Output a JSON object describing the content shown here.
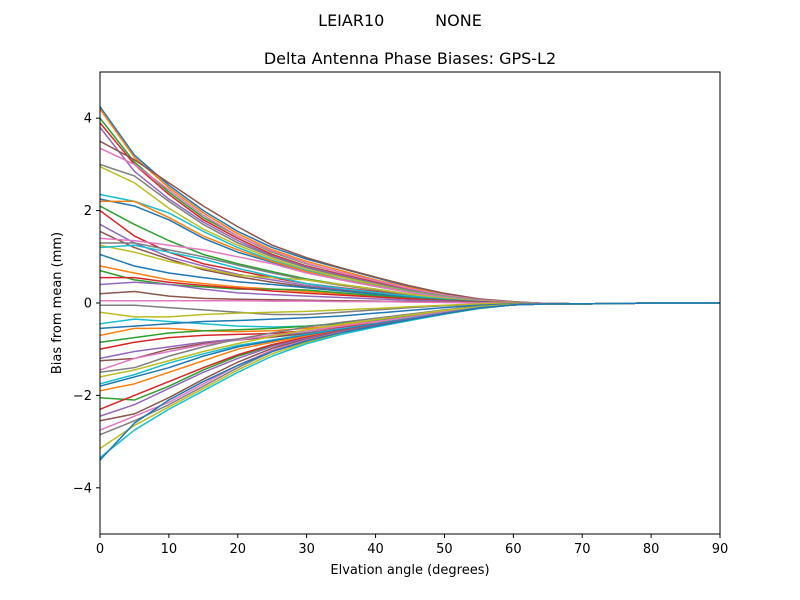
{
  "suptitle": "LEIAR10          NONE",
  "chart_data": {
    "type": "line",
    "title": "Delta Antenna Phase Biases: GPS-L2",
    "xlabel": "Elvation angle (degrees)",
    "ylabel": "Bias from mean (mm)",
    "xlim": [
      0,
      90
    ],
    "ylim": [
      -5,
      5
    ],
    "xticks": [
      0,
      10,
      20,
      30,
      40,
      50,
      60,
      70,
      80,
      90
    ],
    "yticks": [
      -4,
      -2,
      0,
      2,
      4
    ],
    "x": [
      0,
      5,
      10,
      15,
      20,
      25,
      30,
      35,
      40,
      45,
      50,
      55,
      60,
      65,
      70,
      75,
      80,
      85,
      90
    ],
    "grid": false,
    "legend": "none",
    "colors": [
      "#1f77b4",
      "#ff7f0e",
      "#2ca02c",
      "#d62728",
      "#9467bd",
      "#8c564b",
      "#e377c2",
      "#7f7f7f",
      "#bcbd22",
      "#17becf"
    ],
    "series": [
      {
        "values": [
          4.25,
          3.2,
          2.55,
          2.0,
          1.55,
          1.2,
          0.95,
          0.75,
          0.55,
          0.35,
          0.2,
          0.08,
          0.02,
          -0.01,
          -0.02,
          -0.01,
          0.0,
          0.0,
          0.0
        ]
      },
      {
        "values": [
          4.2,
          3.15,
          2.5,
          1.95,
          1.5,
          1.15,
          0.9,
          0.7,
          0.5,
          0.33,
          0.18,
          0.07,
          0.02,
          -0.01,
          -0.02,
          -0.01,
          0.0,
          0.0,
          0.0
        ]
      },
      {
        "values": [
          4.0,
          3.05,
          2.4,
          1.85,
          1.45,
          1.1,
          0.85,
          0.66,
          0.48,
          0.3,
          0.17,
          0.07,
          0.01,
          -0.01,
          -0.02,
          -0.01,
          0.0,
          0.0,
          0.0
        ]
      },
      {
        "values": [
          3.9,
          3.0,
          2.35,
          1.8,
          1.4,
          1.05,
          0.8,
          0.62,
          0.45,
          0.28,
          0.15,
          0.06,
          0.01,
          -0.01,
          -0.02,
          -0.01,
          0.0,
          0.0,
          0.0
        ]
      },
      {
        "values": [
          3.8,
          2.85,
          2.25,
          1.75,
          1.35,
          1.02,
          0.78,
          0.6,
          0.43,
          0.27,
          0.15,
          0.06,
          0.01,
          -0.01,
          -0.02,
          -0.01,
          0.0,
          0.0,
          0.0
        ]
      },
      {
        "values": [
          3.5,
          3.1,
          2.6,
          2.1,
          1.65,
          1.25,
          0.98,
          0.76,
          0.56,
          0.37,
          0.21,
          0.09,
          0.03,
          -0.01,
          -0.02,
          -0.01,
          0.0,
          0.0,
          0.0
        ]
      },
      {
        "values": [
          3.35,
          3.0,
          2.45,
          1.9,
          1.45,
          1.12,
          0.86,
          0.66,
          0.48,
          0.31,
          0.17,
          0.07,
          0.02,
          -0.01,
          -0.02,
          -0.01,
          0.0,
          0.0,
          0.0
        ]
      },
      {
        "values": [
          3.0,
          2.75,
          2.2,
          1.7,
          1.3,
          1.0,
          0.76,
          0.58,
          0.42,
          0.27,
          0.15,
          0.06,
          0.01,
          -0.01,
          -0.02,
          -0.01,
          0.0,
          0.0,
          0.0
        ]
      },
      {
        "values": [
          2.95,
          2.6,
          2.05,
          1.6,
          1.25,
          0.96,
          0.72,
          0.56,
          0.4,
          0.25,
          0.14,
          0.05,
          0.01,
          -0.01,
          -0.02,
          -0.01,
          0.0,
          0.0,
          0.0
        ]
      },
      {
        "values": [
          2.35,
          2.2,
          1.95,
          1.55,
          1.2,
          0.92,
          0.7,
          0.52,
          0.38,
          0.24,
          0.13,
          0.05,
          0.01,
          -0.01,
          -0.02,
          -0.01,
          0.0,
          0.0,
          0.0
        ]
      },
      {
        "values": [
          2.25,
          2.1,
          1.8,
          1.4,
          1.1,
          0.88,
          0.66,
          0.5,
          0.36,
          0.23,
          0.12,
          0.05,
          0.01,
          -0.01,
          -0.02,
          -0.01,
          0.0,
          0.0,
          0.0
        ]
      },
      {
        "values": [
          2.2,
          2.2,
          1.85,
          1.45,
          1.15,
          0.9,
          0.68,
          0.51,
          0.37,
          0.23,
          0.12,
          0.05,
          0.01,
          -0.01,
          -0.02,
          -0.01,
          0.0,
          0.0,
          0.0
        ]
      },
      {
        "values": [
          2.1,
          1.7,
          1.35,
          1.05,
          0.85,
          0.68,
          0.52,
          0.4,
          0.3,
          0.19,
          0.1,
          0.04,
          0.01,
          -0.01,
          -0.02,
          -0.01,
          0.0,
          0.0,
          0.0
        ]
      },
      {
        "values": [
          2.0,
          1.45,
          1.1,
          0.85,
          0.7,
          0.55,
          0.42,
          0.33,
          0.25,
          0.16,
          0.09,
          0.03,
          0.0,
          -0.01,
          -0.02,
          -0.01,
          0.0,
          0.0,
          0.0
        ]
      },
      {
        "values": [
          1.7,
          1.3,
          1.0,
          0.8,
          0.62,
          0.5,
          0.38,
          0.3,
          0.22,
          0.14,
          0.08,
          0.03,
          0.0,
          -0.01,
          -0.02,
          -0.01,
          0.0,
          0.0,
          0.0
        ]
      },
      {
        "values": [
          1.55,
          1.2,
          0.95,
          0.72,
          0.57,
          0.45,
          0.35,
          0.27,
          0.2,
          0.13,
          0.07,
          0.03,
          0.0,
          -0.01,
          -0.02,
          -0.01,
          0.0,
          0.0,
          0.0
        ]
      },
      {
        "values": [
          1.4,
          1.35,
          1.25,
          1.15,
          1.0,
          0.85,
          0.65,
          0.5,
          0.36,
          0.23,
          0.12,
          0.05,
          0.01,
          -0.01,
          -0.02,
          -0.01,
          0.0,
          0.0,
          0.0
        ]
      },
      {
        "values": [
          1.3,
          1.3,
          1.15,
          1.0,
          0.82,
          0.65,
          0.5,
          0.38,
          0.28,
          0.18,
          0.1,
          0.04,
          0.01,
          -0.01,
          -0.02,
          -0.01,
          0.0,
          0.0,
          0.0
        ]
      },
      {
        "values": [
          1.25,
          1.1,
          0.9,
          0.75,
          0.6,
          0.55,
          0.5,
          0.4,
          0.3,
          0.19,
          0.1,
          0.04,
          0.01,
          -0.01,
          -0.02,
          -0.01,
          0.0,
          0.0,
          0.0
        ]
      },
      {
        "values": [
          1.2,
          1.25,
          1.1,
          0.95,
          0.75,
          0.58,
          0.42,
          0.32,
          0.23,
          0.15,
          0.08,
          0.03,
          0.0,
          -0.01,
          -0.02,
          -0.01,
          0.0,
          0.0,
          0.0
        ]
      },
      {
        "values": [
          1.05,
          0.8,
          0.65,
          0.55,
          0.46,
          0.4,
          0.33,
          0.26,
          0.19,
          0.12,
          0.07,
          0.03,
          0.0,
          -0.01,
          -0.02,
          -0.01,
          0.0,
          0.0,
          0.0
        ]
      },
      {
        "values": [
          0.8,
          0.65,
          0.5,
          0.42,
          0.35,
          0.3,
          0.25,
          0.2,
          0.15,
          0.1,
          0.06,
          0.02,
          0.0,
          -0.01,
          -0.02,
          -0.01,
          0.0,
          0.0,
          0.0
        ]
      },
      {
        "values": [
          0.7,
          0.5,
          0.4,
          0.35,
          0.3,
          0.3,
          0.28,
          0.22,
          0.16,
          0.1,
          0.06,
          0.02,
          0.0,
          -0.01,
          -0.02,
          -0.01,
          0.0,
          0.0,
          0.0
        ]
      },
      {
        "values": [
          0.55,
          0.55,
          0.45,
          0.38,
          0.32,
          0.26,
          0.21,
          0.17,
          0.13,
          0.09,
          0.05,
          0.02,
          0.0,
          -0.01,
          -0.02,
          -0.01,
          0.0,
          0.0,
          0.0
        ]
      },
      {
        "values": [
          0.4,
          0.45,
          0.4,
          0.3,
          0.22,
          0.18,
          0.15,
          0.12,
          0.09,
          0.06,
          0.04,
          0.01,
          0.0,
          -0.01,
          -0.02,
          -0.01,
          0.0,
          0.0,
          0.0
        ]
      },
      {
        "values": [
          0.2,
          0.25,
          0.15,
          0.1,
          0.08,
          0.07,
          0.06,
          0.05,
          0.04,
          0.03,
          0.02,
          0.01,
          0.0,
          -0.01,
          -0.02,
          -0.01,
          0.0,
          0.0,
          0.0
        ]
      },
      {
        "values": [
          0.05,
          0.05,
          0.05,
          0.05,
          0.05,
          0.04,
          0.04,
          0.03,
          0.03,
          0.02,
          0.01,
          0.0,
          0.0,
          -0.01,
          -0.02,
          -0.01,
          0.0,
          0.0,
          0.0
        ]
      },
      {
        "values": [
          -0.05,
          -0.05,
          -0.1,
          -0.15,
          -0.2,
          -0.25,
          -0.25,
          -0.2,
          -0.15,
          -0.1,
          -0.06,
          -0.03,
          -0.01,
          -0.02,
          -0.02,
          -0.01,
          0.0,
          0.0,
          0.0
        ]
      },
      {
        "values": [
          -0.2,
          -0.3,
          -0.3,
          -0.25,
          -0.22,
          -0.2,
          -0.18,
          -0.15,
          -0.12,
          -0.08,
          -0.05,
          -0.02,
          -0.01,
          -0.02,
          -0.02,
          -0.01,
          0.0,
          0.0,
          0.0
        ]
      },
      {
        "values": [
          -0.45,
          -0.35,
          -0.4,
          -0.45,
          -0.5,
          -0.52,
          -0.5,
          -0.45,
          -0.38,
          -0.28,
          -0.18,
          -0.09,
          -0.03,
          -0.02,
          -0.02,
          -0.01,
          0.0,
          0.0,
          0.0
        ]
      },
      {
        "values": [
          -0.55,
          -0.5,
          -0.45,
          -0.4,
          -0.38,
          -0.35,
          -0.32,
          -0.28,
          -0.22,
          -0.16,
          -0.1,
          -0.05,
          -0.02,
          -0.02,
          -0.02,
          -0.01,
          0.0,
          0.0,
          0.0
        ]
      },
      {
        "values": [
          -0.7,
          -0.55,
          -0.55,
          -0.6,
          -0.62,
          -0.6,
          -0.55,
          -0.48,
          -0.4,
          -0.3,
          -0.19,
          -0.1,
          -0.04,
          -0.02,
          -0.02,
          -0.01,
          0.0,
          0.0,
          0.0
        ]
      },
      {
        "values": [
          -0.85,
          -0.75,
          -0.65,
          -0.6,
          -0.58,
          -0.55,
          -0.5,
          -0.44,
          -0.37,
          -0.28,
          -0.18,
          -0.09,
          -0.03,
          -0.02,
          -0.02,
          -0.01,
          0.0,
          0.0,
          0.0
        ]
      },
      {
        "values": [
          -1.0,
          -0.85,
          -0.75,
          -0.7,
          -0.68,
          -0.66,
          -0.6,
          -0.52,
          -0.44,
          -0.33,
          -0.21,
          -0.11,
          -0.04,
          -0.02,
          -0.02,
          -0.01,
          0.0,
          0.0,
          0.0
        ]
      },
      {
        "values": [
          -1.2,
          -1.05,
          -0.95,
          -0.85,
          -0.78,
          -0.72,
          -0.64,
          -0.55,
          -0.45,
          -0.34,
          -0.22,
          -0.11,
          -0.04,
          -0.02,
          -0.02,
          -0.01,
          0.0,
          0.0,
          0.0
        ]
      },
      {
        "values": [
          -1.25,
          -1.2,
          -1.0,
          -0.88,
          -0.8,
          -0.74,
          -0.66,
          -0.56,
          -0.46,
          -0.34,
          -0.22,
          -0.11,
          -0.04,
          -0.02,
          -0.02,
          -0.01,
          0.0,
          0.0,
          0.0
        ]
      },
      {
        "values": [
          -1.45,
          -1.2,
          -1.05,
          -0.9,
          -0.8,
          -0.7,
          -0.6,
          -0.5,
          -0.4,
          -0.3,
          -0.19,
          -0.1,
          -0.04,
          -0.02,
          -0.02,
          -0.01,
          0.0,
          0.0,
          0.0
        ]
      },
      {
        "values": [
          -1.5,
          -1.4,
          -1.15,
          -0.95,
          -0.78,
          -0.65,
          -0.52,
          -0.42,
          -0.33,
          -0.24,
          -0.15,
          -0.07,
          -0.03,
          -0.02,
          -0.02,
          -0.01,
          0.0,
          0.0,
          0.0
        ]
      },
      {
        "values": [
          -1.6,
          -1.45,
          -1.25,
          -1.05,
          -0.88,
          -0.72,
          -0.58,
          -0.46,
          -0.36,
          -0.26,
          -0.16,
          -0.08,
          -0.03,
          -0.02,
          -0.02,
          -0.01,
          0.0,
          0.0,
          0.0
        ]
      },
      {
        "values": [
          -1.75,
          -1.55,
          -1.3,
          -1.1,
          -0.92,
          -0.8,
          -0.68,
          -0.56,
          -0.45,
          -0.33,
          -0.21,
          -0.1,
          -0.04,
          -0.02,
          -0.02,
          -0.01,
          0.0,
          0.0,
          0.0
        ]
      },
      {
        "values": [
          -1.8,
          -1.6,
          -1.4,
          -1.15,
          -0.95,
          -0.82,
          -0.7,
          -0.58,
          -0.46,
          -0.34,
          -0.22,
          -0.11,
          -0.04,
          -0.02,
          -0.02,
          -0.01,
          0.0,
          0.0,
          0.0
        ]
      },
      {
        "values": [
          -1.9,
          -1.75,
          -1.5,
          -1.25,
          -1.0,
          -0.85,
          -0.72,
          -0.6,
          -0.48,
          -0.35,
          -0.22,
          -0.11,
          -0.04,
          -0.02,
          -0.02,
          -0.01,
          0.0,
          0.0,
          0.0
        ]
      },
      {
        "values": [
          -2.05,
          -2.1,
          -1.8,
          -1.45,
          -1.15,
          -0.92,
          -0.76,
          -0.62,
          -0.49,
          -0.36,
          -0.23,
          -0.11,
          -0.04,
          -0.02,
          -0.02,
          -0.01,
          0.0,
          0.0,
          0.0
        ]
      },
      {
        "values": [
          -2.3,
          -2.0,
          -1.7,
          -1.4,
          -1.12,
          -0.9,
          -0.74,
          -0.6,
          -0.48,
          -0.35,
          -0.22,
          -0.11,
          -0.04,
          -0.02,
          -0.02,
          -0.01,
          0.0,
          0.0,
          0.0
        ]
      },
      {
        "values": [
          -2.45,
          -2.2,
          -1.85,
          -1.5,
          -1.2,
          -0.94,
          -0.76,
          -0.61,
          -0.48,
          -0.35,
          -0.22,
          -0.11,
          -0.04,
          -0.02,
          -0.02,
          -0.01,
          0.0,
          0.0,
          0.0
        ]
      },
      {
        "values": [
          -2.55,
          -2.4,
          -2.05,
          -1.65,
          -1.28,
          -0.98,
          -0.78,
          -0.62,
          -0.49,
          -0.36,
          -0.23,
          -0.11,
          -0.04,
          -0.02,
          -0.02,
          -0.01,
          0.0,
          0.0,
          0.0
        ]
      },
      {
        "values": [
          -2.75,
          -2.45,
          -2.15,
          -1.75,
          -1.35,
          -1.02,
          -0.8,
          -0.63,
          -0.5,
          -0.36,
          -0.23,
          -0.11,
          -0.04,
          -0.02,
          -0.02,
          -0.01,
          0.0,
          0.0,
          0.0
        ]
      },
      {
        "values": [
          -2.85,
          -2.55,
          -2.2,
          -1.8,
          -1.4,
          -1.05,
          -0.82,
          -0.64,
          -0.5,
          -0.37,
          -0.23,
          -0.11,
          -0.04,
          -0.02,
          -0.02,
          -0.01,
          0.0,
          0.0,
          0.0
        ]
      },
      {
        "values": [
          -3.15,
          -2.65,
          -2.25,
          -1.85,
          -1.45,
          -1.1,
          -0.85,
          -0.66,
          -0.51,
          -0.37,
          -0.24,
          -0.12,
          -0.04,
          -0.02,
          -0.02,
          -0.01,
          0.0,
          0.0,
          0.0
        ]
      },
      {
        "values": [
          -3.35,
          -2.75,
          -2.3,
          -1.9,
          -1.5,
          -1.15,
          -0.88,
          -0.68,
          -0.52,
          -0.38,
          -0.24,
          -0.12,
          -0.04,
          -0.02,
          -0.02,
          -0.01,
          0.0,
          0.0,
          0.0
        ]
      },
      {
        "values": [
          -3.4,
          -2.6,
          -2.1,
          -1.7,
          -1.35,
          -1.05,
          -0.82,
          -0.64,
          -0.5,
          -0.36,
          -0.23,
          -0.11,
          -0.04,
          -0.02,
          -0.02,
          -0.01,
          0.0,
          0.0,
          0.0
        ]
      }
    ]
  }
}
